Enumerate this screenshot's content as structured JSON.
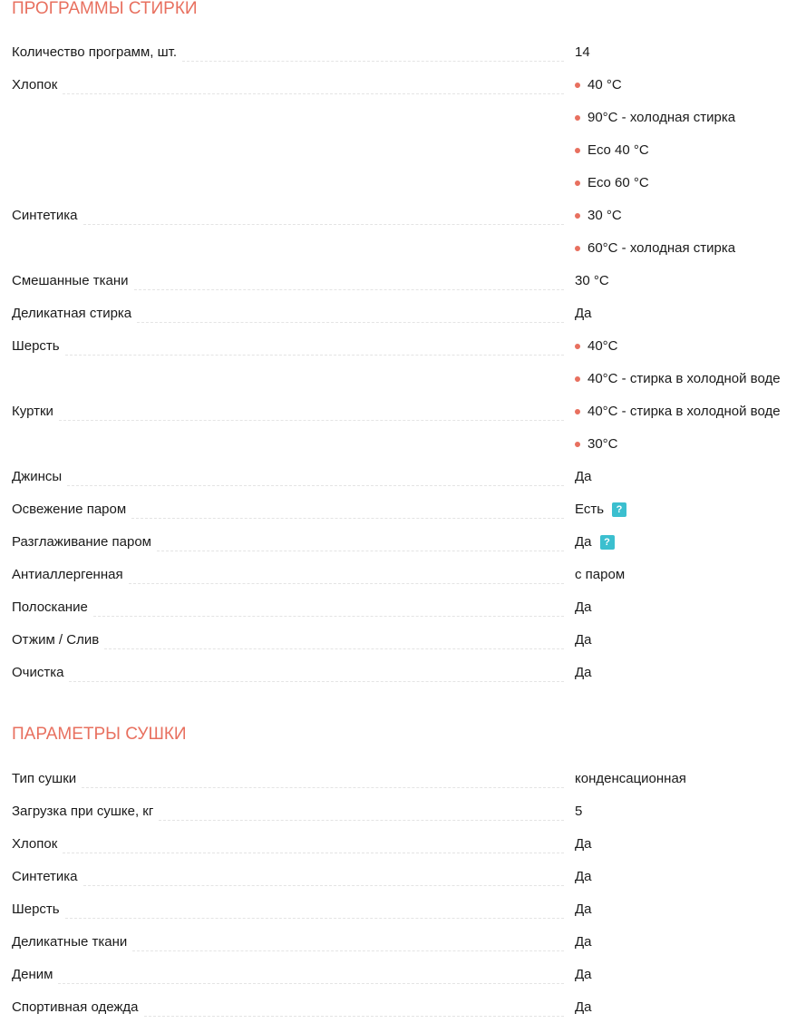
{
  "sections": [
    {
      "title": "ПРОГРАММЫ СТИРКИ",
      "rows": [
        {
          "label": "Количество программ, шт.",
          "values": [
            "14"
          ],
          "bullets": false
        },
        {
          "label": "Хлопок",
          "values": [
            "40 °C",
            "90°C - холодная стирка",
            "Eco 40 °C",
            "Eco 60 °C"
          ],
          "bullets": true
        },
        {
          "label": "Синтетика",
          "values": [
            "30 °C",
            "60°C - холодная стирка"
          ],
          "bullets": true
        },
        {
          "label": "Смешанные ткани",
          "values": [
            "30 °C"
          ],
          "bullets": false
        },
        {
          "label": "Деликатная стирка",
          "values": [
            "Да"
          ],
          "bullets": false
        },
        {
          "label": "Шерсть",
          "values": [
            "40°C",
            "40°C - стирка в холодной воде"
          ],
          "bullets": true
        },
        {
          "label": "Куртки",
          "values": [
            "40°C - стирка в холодной воде",
            "30°C"
          ],
          "bullets": true
        },
        {
          "label": "Джинсы",
          "values": [
            "Да"
          ],
          "bullets": false
        },
        {
          "label": "Освежение паром",
          "values": [
            "Есть"
          ],
          "bullets": false,
          "help": "?"
        },
        {
          "label": "Разглаживание паром",
          "values": [
            "Да"
          ],
          "bullets": false,
          "help": "?"
        },
        {
          "label": "Антиаллергенная",
          "values": [
            "с паром"
          ],
          "bullets": false
        },
        {
          "label": "Полоскание",
          "values": [
            "Да"
          ],
          "bullets": false
        },
        {
          "label": "Отжим / Слив",
          "values": [
            "Да"
          ],
          "bullets": false
        },
        {
          "label": "Очистка",
          "values": [
            "Да"
          ],
          "bullets": false
        }
      ]
    },
    {
      "title": "ПАРАМЕТРЫ СУШКИ",
      "rows": [
        {
          "label": "Тип сушки",
          "values": [
            "конденсационная"
          ],
          "bullets": false
        },
        {
          "label": "Загрузка при сушке, кг",
          "values": [
            "5"
          ],
          "bullets": false
        },
        {
          "label": "Хлопок",
          "values": [
            "Да"
          ],
          "bullets": false
        },
        {
          "label": "Синтетика",
          "values": [
            "Да"
          ],
          "bullets": false
        },
        {
          "label": "Шерсть",
          "values": [
            "Да"
          ],
          "bullets": false
        },
        {
          "label": "Деликатные ткани",
          "values": [
            "Да"
          ],
          "bullets": false
        },
        {
          "label": "Деним",
          "values": [
            "Да"
          ],
          "bullets": false
        },
        {
          "label": "Спортивная одежда",
          "values": [
            "Да"
          ],
          "bullets": false
        }
      ]
    }
  ],
  "colors": {
    "accent": "#e8705f",
    "help": "#3bbfcf"
  }
}
